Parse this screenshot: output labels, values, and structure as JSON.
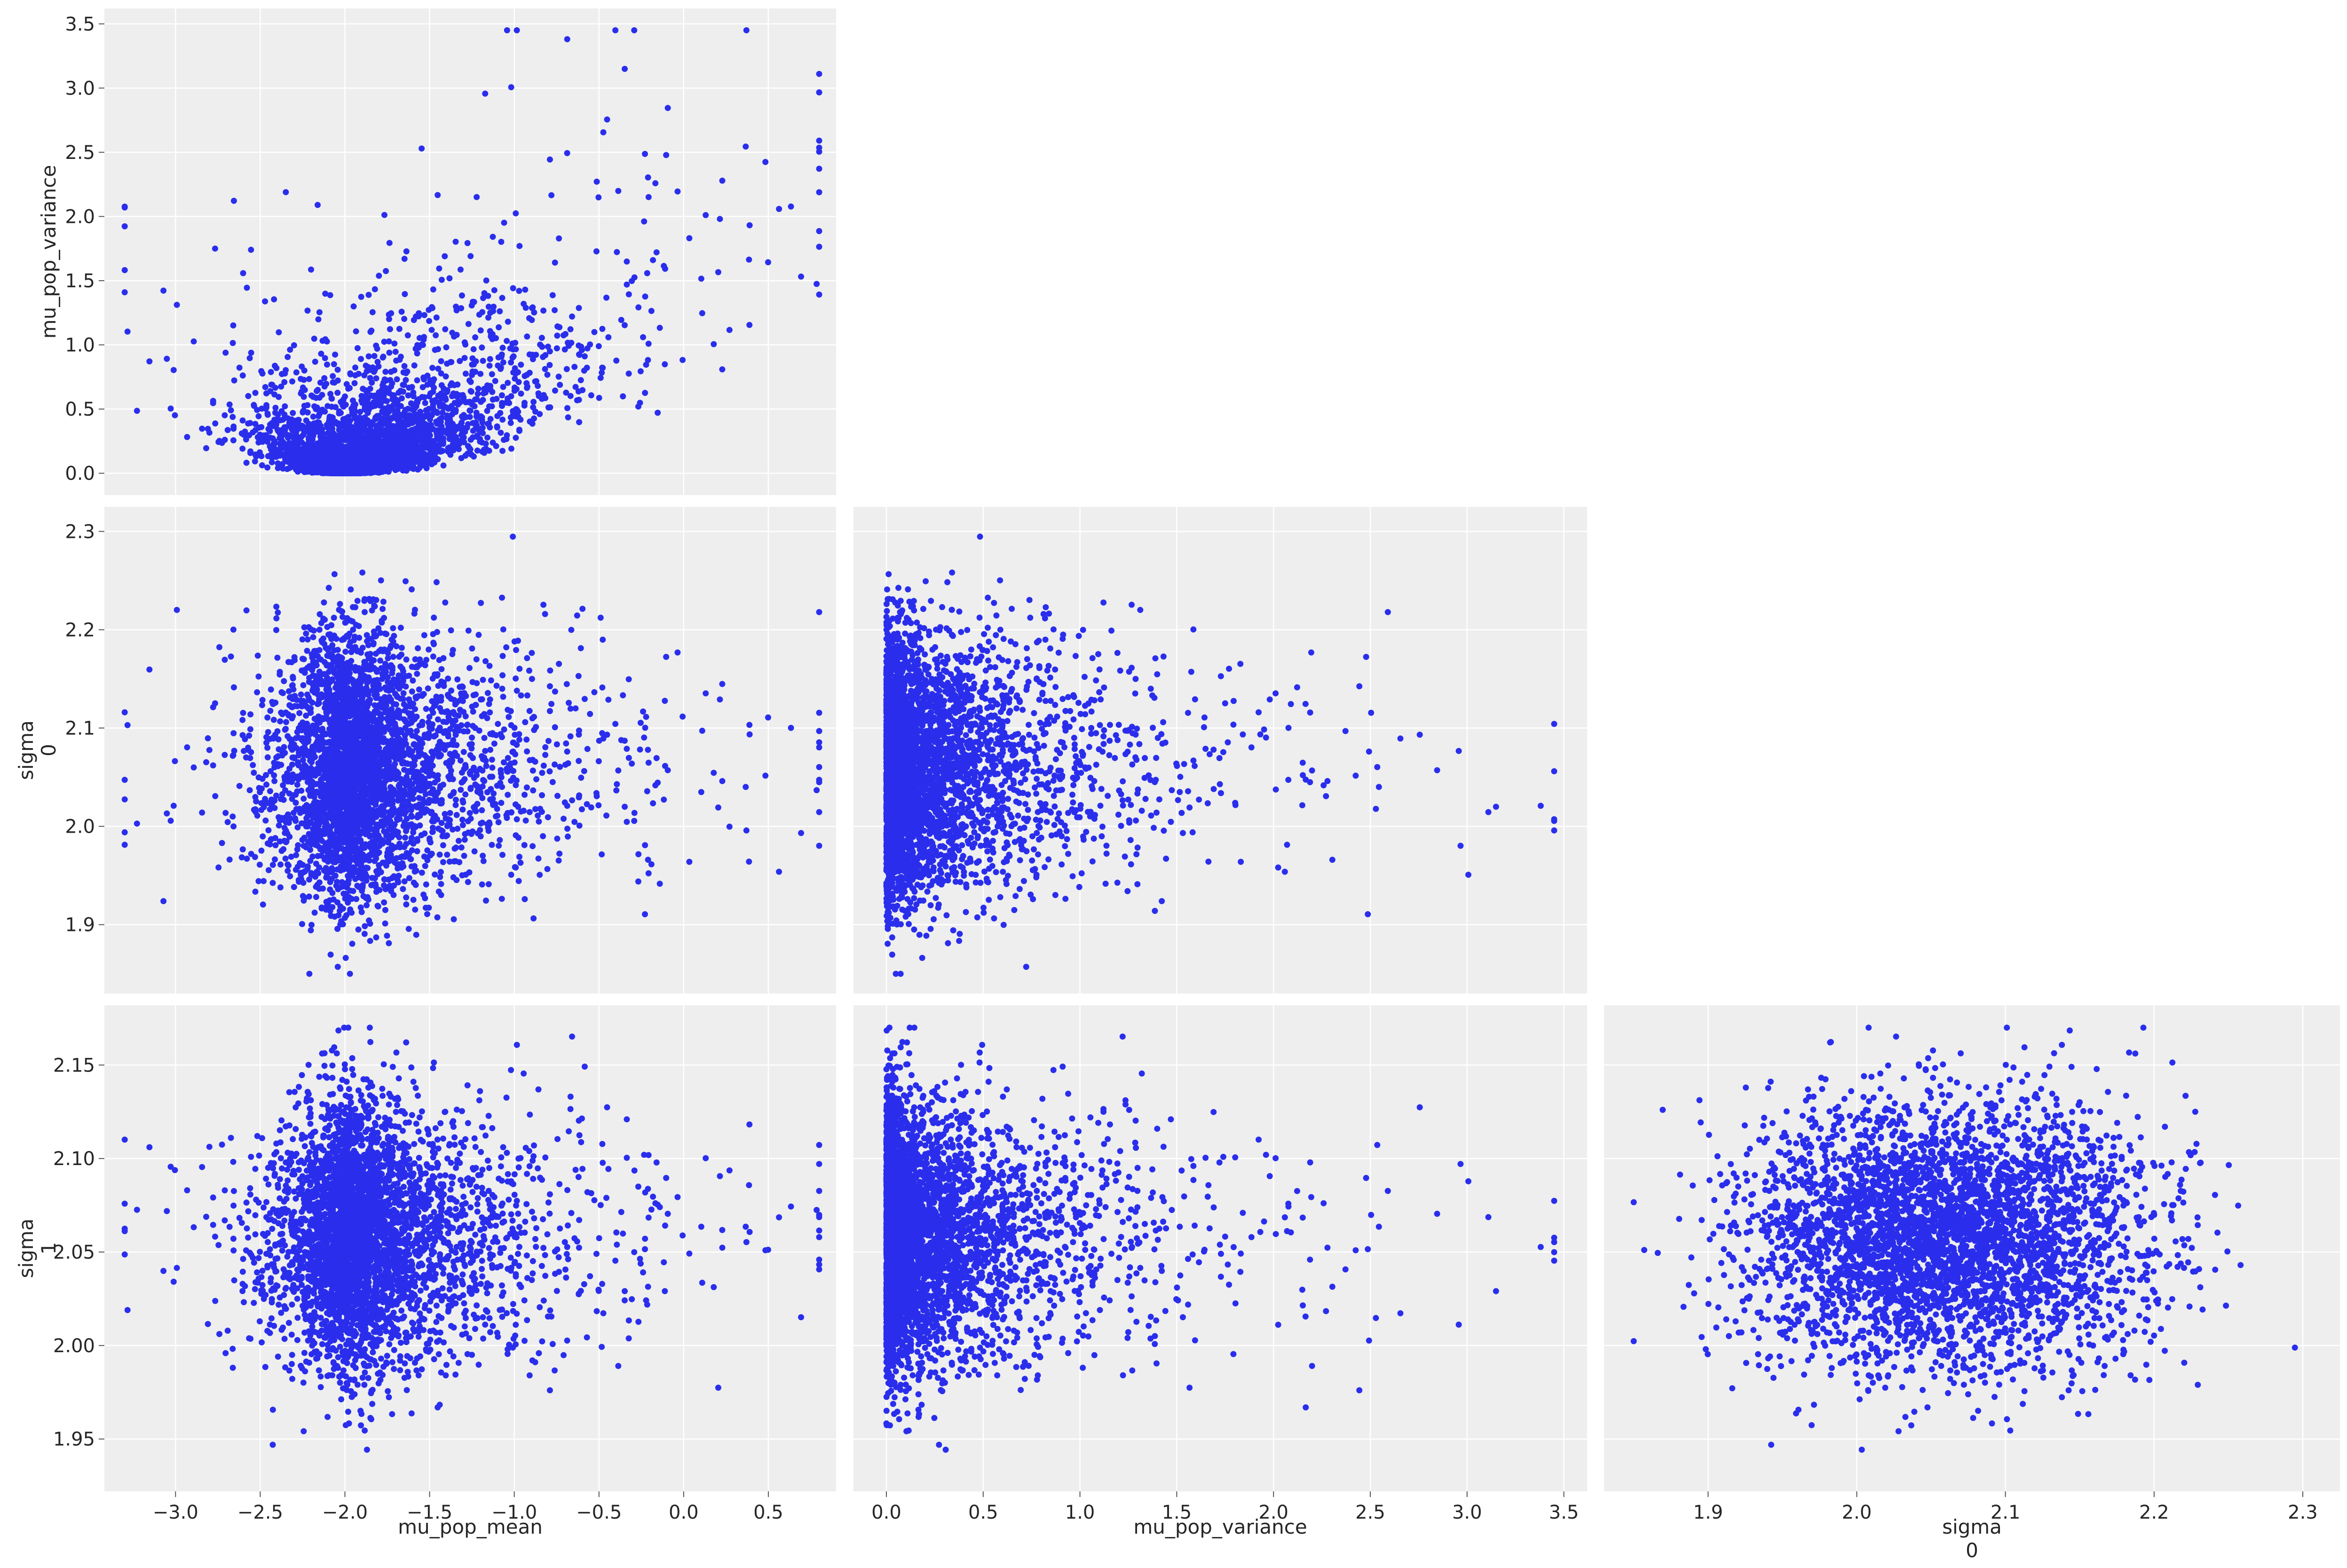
{
  "chart_data": {
    "type": "scatter",
    "layout": "pair-plot-lower-triangle",
    "grid": true,
    "marker_color": "#2a2eec",
    "panel_background": "#eeeeee",
    "variables": [
      {
        "key": "mu_pop_mean",
        "label_lines": [
          "mu_pop_mean"
        ],
        "range": [
          -3.42,
          0.9
        ],
        "ticks": [
          -3.0,
          -2.5,
          -2.0,
          -1.5,
          -1.0,
          -0.5,
          0.0,
          0.5
        ],
        "tick_labels": [
          "−3.0",
          "−2.5",
          "−2.0",
          "−1.5",
          "−1.0",
          "−0.5",
          "0.0",
          "0.5"
        ]
      },
      {
        "key": "mu_pop_variance",
        "label_lines": [
          "mu_pop_variance"
        ],
        "range": [
          -0.17,
          3.62
        ],
        "ticks": [
          0.0,
          0.5,
          1.0,
          1.5,
          2.0,
          2.5,
          3.0,
          3.5
        ],
        "tick_labels": [
          "0.0",
          "0.5",
          "1.0",
          "1.5",
          "2.0",
          "2.5",
          "3.0",
          "3.5"
        ]
      },
      {
        "key": "sigma_0",
        "label_lines": [
          "sigma",
          "0"
        ],
        "range": [
          1.83,
          2.325
        ],
        "ticks": [
          1.9,
          2.0,
          2.1,
          2.2,
          2.3
        ],
        "tick_labels": [
          "1.9",
          "2.0",
          "2.1",
          "2.2",
          "2.3"
        ]
      },
      {
        "key": "sigma_1",
        "label_lines": [
          "sigma",
          "1"
        ],
        "range": [
          1.922,
          2.182
        ],
        "ticks": [
          1.95,
          2.0,
          2.05,
          2.1,
          2.15
        ],
        "tick_labels": [
          "1.95",
          "2.00",
          "2.05",
          "2.10",
          "2.15"
        ]
      }
    ],
    "panels": [
      {
        "x": "mu_pop_mean",
        "y": "mu_pop_variance"
      },
      {
        "x": "mu_pop_mean",
        "y": "sigma_0"
      },
      {
        "x": "mu_pop_variance",
        "y": "sigma_0"
      },
      {
        "x": "mu_pop_mean",
        "y": "sigma_1"
      },
      {
        "x": "mu_pop_variance",
        "y": "sigma_1"
      },
      {
        "x": "sigma_0",
        "y": "sigma_1"
      }
    ],
    "samples": {
      "count": 4000,
      "mu_pop_mean": {
        "center": -2.0,
        "min": -3.3,
        "max": 0.8
      },
      "mu_pop_variance": {
        "min": 0.0,
        "max": 3.45
      },
      "sigma_0": {
        "mean": 2.06,
        "sd": 0.065,
        "min": 1.85,
        "max": 2.3
      },
      "sigma_1": {
        "mean": 2.06,
        "sd": 0.035,
        "min": 1.93,
        "max": 2.17
      }
    }
  }
}
